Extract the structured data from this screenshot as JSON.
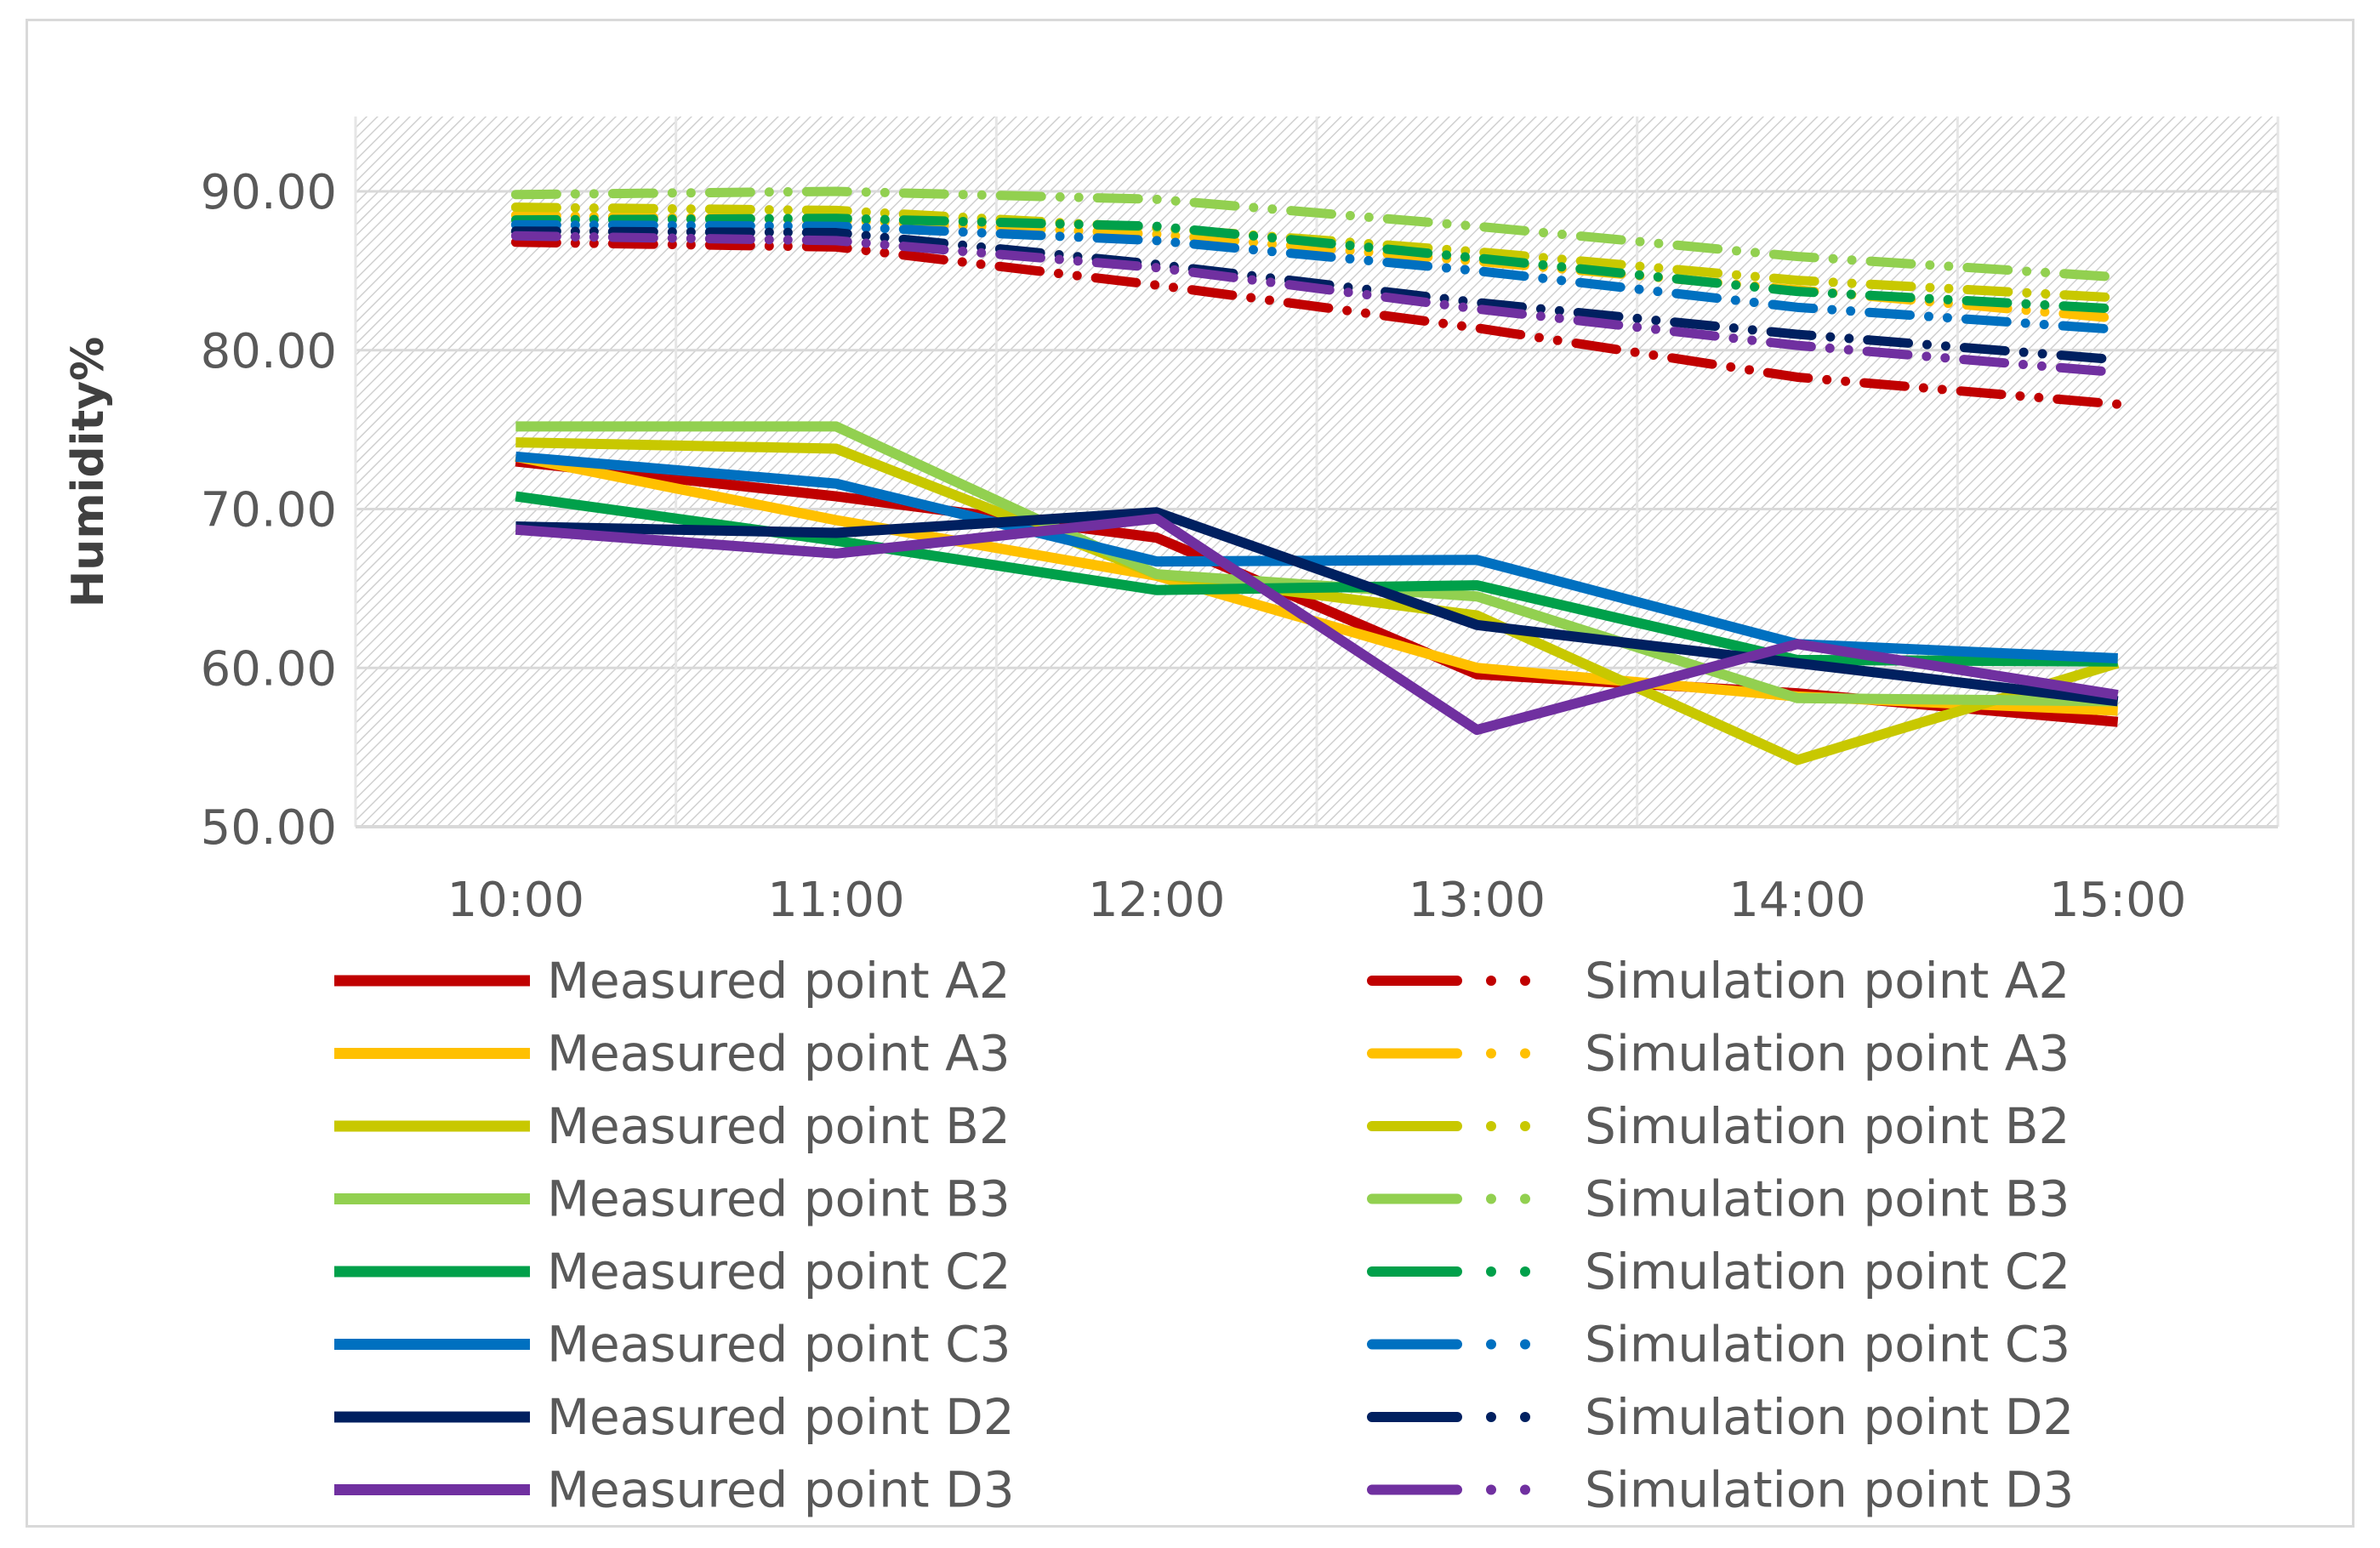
{
  "chart_data": {
    "type": "line",
    "ylabel": "Humidity%",
    "ylim": [
      50,
      90
    ],
    "yticks": [
      "90.00",
      "80.00",
      "70.00",
      "60.00",
      "50.00"
    ],
    "ytick_values": [
      90,
      80,
      70,
      60,
      50
    ],
    "categories": [
      "10:00",
      "11:00",
      "12:00",
      "13:00",
      "14:00",
      "15:00"
    ],
    "grid": true,
    "legend_position": "bottom",
    "series": [
      {
        "name": "Measured point A2",
        "style": "solid",
        "color": "#c00000",
        "values": [
          73.0,
          70.8,
          68.2,
          59.6,
          58.4,
          56.6
        ]
      },
      {
        "name": "Measured point A3",
        "style": "solid",
        "color": "#ffc000",
        "values": [
          73.3,
          69.3,
          65.8,
          60.0,
          58.2,
          57.3
        ]
      },
      {
        "name": "Measured point B2",
        "style": "solid",
        "color": "#c8c800",
        "values": [
          74.2,
          73.8,
          65.9,
          63.3,
          54.2,
          60.3
        ]
      },
      {
        "name": "Measured point B3",
        "style": "solid",
        "color": "#92d050",
        "values": [
          75.2,
          75.2,
          65.9,
          64.5,
          58.1,
          57.9
        ]
      },
      {
        "name": "Measured point C2",
        "style": "solid",
        "color": "#00a04a",
        "values": [
          70.8,
          68.0,
          64.9,
          65.2,
          60.5,
          60.4
        ]
      },
      {
        "name": "Measured point C3",
        "style": "solid",
        "color": "#0070c0",
        "values": [
          73.3,
          71.6,
          66.7,
          66.8,
          61.5,
          60.6
        ]
      },
      {
        "name": "Measured point D2",
        "style": "solid",
        "color": "#002060",
        "values": [
          68.9,
          68.5,
          69.8,
          62.7,
          60.3,
          57.9
        ]
      },
      {
        "name": "Measured point D3",
        "style": "solid",
        "color": "#7030a0",
        "values": [
          68.7,
          67.2,
          69.4,
          56.1,
          61.5,
          58.3
        ]
      },
      {
        "name": "Simulation point A2",
        "style": "dash-dot",
        "color": "#c00000",
        "values": [
          86.8,
          86.5,
          84.1,
          81.4,
          78.3,
          76.6
        ]
      },
      {
        "name": "Simulation point A3",
        "style": "dash-dot",
        "color": "#ffc000",
        "values": [
          88.5,
          88.2,
          87.3,
          85.6,
          83.8,
          82.0
        ]
      },
      {
        "name": "Simulation point B2",
        "style": "dash-dot",
        "color": "#c8c800",
        "values": [
          89.0,
          88.8,
          87.7,
          86.2,
          84.4,
          83.3
        ]
      },
      {
        "name": "Simulation point B3",
        "style": "dash-dot",
        "color": "#92d050",
        "values": [
          89.8,
          90.0,
          89.5,
          87.8,
          85.9,
          84.6
        ]
      },
      {
        "name": "Simulation point C2",
        "style": "dash-dot",
        "color": "#00a04a",
        "values": [
          88.2,
          88.3,
          87.8,
          85.8,
          83.7,
          82.6
        ]
      },
      {
        "name": "Simulation point C3",
        "style": "dash-dot",
        "color": "#0070c0",
        "values": [
          87.9,
          87.8,
          86.9,
          85.0,
          82.7,
          81.3
        ]
      },
      {
        "name": "Simulation point D2",
        "style": "dash-dot",
        "color": "#002060",
        "values": [
          87.5,
          87.4,
          85.4,
          83.0,
          81.0,
          79.4
        ]
      },
      {
        "name": "Simulation point D3",
        "style": "dash-dot",
        "color": "#7030a0",
        "values": [
          87.2,
          86.9,
          85.2,
          82.6,
          80.3,
          78.6
        ]
      }
    ]
  }
}
